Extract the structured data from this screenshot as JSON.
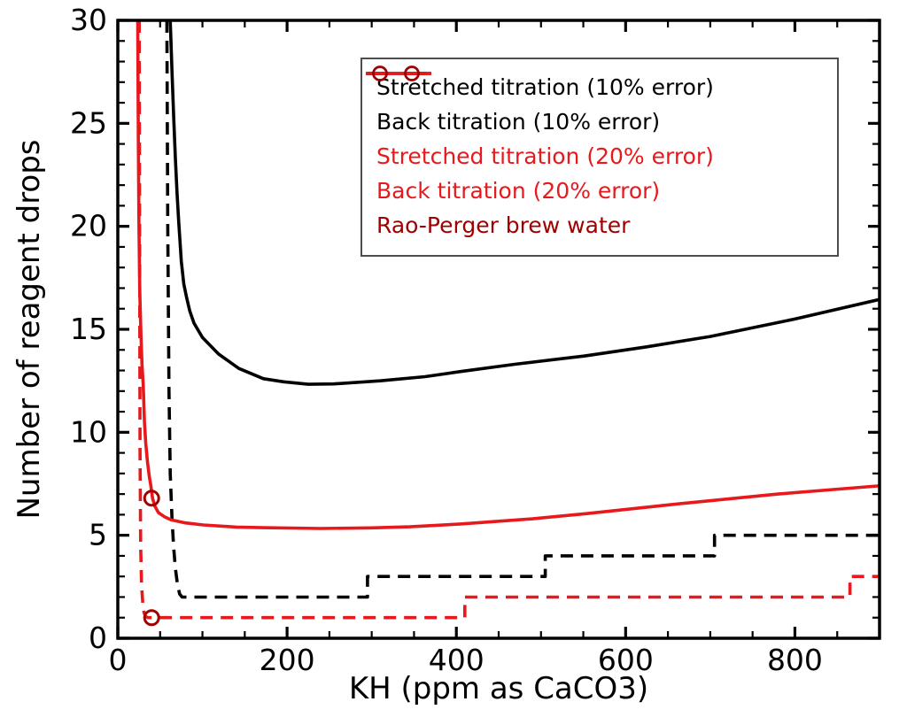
{
  "chart_data": {
    "type": "line",
    "title": "",
    "xlabel": "KH (ppm as CaCO3)",
    "ylabel": "Number of reagent drops",
    "xlim": [
      0,
      900
    ],
    "ylim": [
      0,
      30
    ],
    "x_major_ticks": [
      0,
      200,
      400,
      600,
      800
    ],
    "x_minor_step": 50,
    "y_major_ticks": [
      0,
      5,
      10,
      15,
      20,
      25,
      30
    ],
    "y_minor_step": 1,
    "grid": false,
    "legend_position": "upper right inside",
    "colors": {
      "black": "#000000",
      "red": "#e8191c",
      "darkred": "#a00000",
      "legend_border": "#4d4d4d"
    },
    "series": [
      {
        "name": "Stretched titration (10% error)",
        "kind": "line",
        "style": "solid",
        "color": "#000000",
        "points": [
          [
            62,
            30
          ],
          [
            64,
            27.5
          ],
          [
            66,
            25.3
          ],
          [
            68,
            23.3
          ],
          [
            70,
            21.6
          ],
          [
            72,
            20.2
          ],
          [
            75,
            18.3
          ],
          [
            78,
            17.2
          ],
          [
            81,
            16.6
          ],
          [
            85,
            15.9
          ],
          [
            90,
            15.3
          ],
          [
            100,
            14.6
          ],
          [
            119,
            13.8
          ],
          [
            143,
            13.1
          ],
          [
            172,
            12.6
          ],
          [
            196,
            12.45
          ],
          [
            225,
            12.33
          ],
          [
            255,
            12.35
          ],
          [
            310,
            12.5
          ],
          [
            363,
            12.7
          ],
          [
            405,
            12.95
          ],
          [
            468,
            13.3
          ],
          [
            551,
            13.7
          ],
          [
            625,
            14.15
          ],
          [
            700,
            14.65
          ],
          [
            800,
            15.5
          ],
          [
            900,
            16.45
          ]
        ]
      },
      {
        "name": "Back titration (10% error)",
        "kind": "line",
        "style": "dashed",
        "color": "#000000",
        "points": [
          [
            58,
            30
          ],
          [
            59,
            20
          ],
          [
            60.5,
            12
          ],
          [
            62,
            8
          ],
          [
            64,
            5.8
          ],
          [
            66,
            4.4
          ],
          [
            68,
            3.4
          ],
          [
            70.5,
            2.6
          ],
          [
            73,
            2.15
          ],
          [
            76,
            2
          ],
          [
            295,
            2
          ],
          [
            295,
            3
          ],
          [
            505,
            3
          ],
          [
            505,
            4
          ],
          [
            705,
            4
          ],
          [
            705,
            5
          ],
          [
            900,
            5
          ]
        ]
      },
      {
        "name": "Stretched titration (20% error)",
        "kind": "line",
        "style": "solid",
        "color": "#e8191c",
        "points": [
          [
            23.5,
            30
          ],
          [
            24.3,
            24
          ],
          [
            25,
            20
          ],
          [
            26,
            16.8
          ],
          [
            27.3,
            14.8
          ],
          [
            28.6,
            13.3
          ],
          [
            30,
            12.3
          ],
          [
            31.5,
            10.5
          ],
          [
            33,
            9.5
          ],
          [
            35,
            8.6
          ],
          [
            37,
            7.9
          ],
          [
            39,
            7.4
          ],
          [
            41,
            6.8
          ],
          [
            44,
            6.4
          ],
          [
            48,
            6.1
          ],
          [
            55,
            5.9
          ],
          [
            63,
            5.75
          ],
          [
            80,
            5.6
          ],
          [
            101,
            5.5
          ],
          [
            140,
            5.4
          ],
          [
            171,
            5.37
          ],
          [
            240,
            5.33
          ],
          [
            300,
            5.36
          ],
          [
            345,
            5.41
          ],
          [
            405,
            5.55
          ],
          [
            490,
            5.8
          ],
          [
            554,
            6.05
          ],
          [
            656,
            6.5
          ],
          [
            780,
            7.0
          ],
          [
            900,
            7.4
          ]
        ]
      },
      {
        "name": "Back titration (20% error)",
        "kind": "line",
        "style": "dashed",
        "color": "#e8191c",
        "points": [
          [
            25.3,
            30
          ],
          [
            25.8,
            18
          ],
          [
            26.3,
            9
          ],
          [
            27,
            4.5
          ],
          [
            28,
            2.6
          ],
          [
            29.5,
            1.7
          ],
          [
            31,
            1.25
          ],
          [
            33,
            1.05
          ],
          [
            36,
            1
          ],
          [
            410,
            1
          ],
          [
            410,
            2
          ],
          [
            865,
            2
          ],
          [
            865,
            3
          ],
          [
            900,
            3
          ]
        ]
      },
      {
        "name": "Rao-Perger brew water",
        "kind": "scatter",
        "marker": "open-circle",
        "color": "#a00000",
        "points": [
          [
            40,
            6.8
          ],
          [
            40,
            1
          ]
        ]
      }
    ]
  }
}
